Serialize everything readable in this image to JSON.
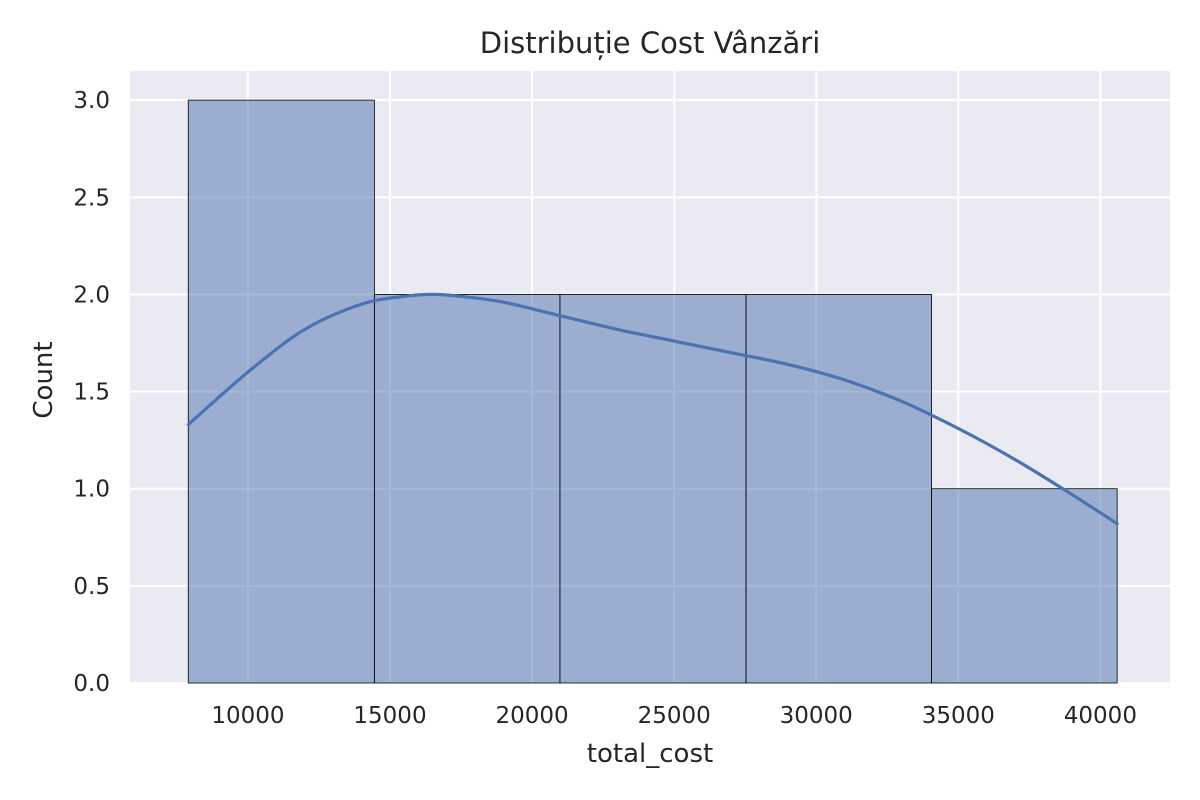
{
  "chart_data": {
    "type": "histogram",
    "title": "Distribuție Cost Vânzări",
    "xlabel": "total_cost",
    "ylabel": "Count",
    "xlim": [
      5850,
      42450
    ],
    "ylim": [
      0,
      3.15
    ],
    "x_ticks": [
      10000,
      15000,
      20000,
      25000,
      30000,
      35000,
      40000
    ],
    "y_ticks": [
      0,
      0.5,
      1.0,
      1.5,
      2.0,
      2.5,
      3.0
    ],
    "y_tick_labels": [
      "0.0",
      "0.5",
      "1.0",
      "1.5",
      "2.0",
      "2.5",
      "3.0"
    ],
    "bins": [
      {
        "start": 7900,
        "end": 14450,
        "count": 3
      },
      {
        "start": 14450,
        "end": 20980,
        "count": 2
      },
      {
        "start": 20980,
        "end": 27530,
        "count": 2
      },
      {
        "start": 27530,
        "end": 34060,
        "count": 2
      },
      {
        "start": 34060,
        "end": 40590,
        "count": 1
      }
    ],
    "kde": {
      "x": [
        7900,
        10000,
        12000,
        14000,
        15500,
        16500,
        17500,
        19000,
        21000,
        23000,
        25000,
        27000,
        29000,
        31000,
        33000,
        35000,
        37000,
        39000,
        40590
      ],
      "y": [
        1.33,
        1.6,
        1.82,
        1.95,
        1.99,
        2.0,
        1.99,
        1.96,
        1.89,
        1.82,
        1.76,
        1.7,
        1.64,
        1.56,
        1.45,
        1.31,
        1.15,
        0.97,
        0.82
      ]
    },
    "grid": true,
    "legend": "none",
    "colors": {
      "background": "#eaeaf2",
      "grid": "#ffffff",
      "bar_fill": "#4c72b0",
      "bar_opacity": 0.5,
      "bar_edge": "#000000",
      "kde_line": "#4c72b0",
      "text": "#262626"
    }
  }
}
